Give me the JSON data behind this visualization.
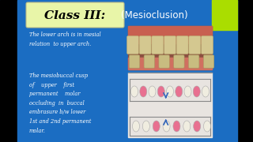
{
  "bg_color": "#1B6DC2",
  "bg_left_color": "#000000",
  "title_box_color": "#E8F5A8",
  "title_text": "Class III:",
  "title_text_color": "#000000",
  "subtitle_text": "(Mesioclusion)",
  "subtitle_color": "#FFFFFF",
  "desc1_line1": "The lower arch is in mesial",
  "desc1_line2": "relation  to upper arch.",
  "desc2_line1": "The mesiobuccal cusp",
  "desc2_line2": "of    upper    first",
  "desc2_line3": "permanent    molar",
  "desc2_line4": "occluding  in  buccal",
  "desc2_line5": "embrasure b/w lower",
  "desc2_line6": "1st and 2nd permanent",
  "desc2_line7": "molar.",
  "desc_color": "#FFFFFF",
  "accent_color": "#AADD00",
  "photo_gum_color": "#C86050",
  "photo_tissue_color": "#D07060",
  "photo_teeth_color": "#D4C890",
  "photo_bg_color": "#8B5040",
  "diagram_bg_color": "#E8E4E0",
  "diagram_jaw_color": "#888888",
  "tooth_white_color": "#F0EDE0",
  "tooth_pink_color": "#E87090",
  "tooth_outline": "#AAAAAA",
  "arrow_color": "#3366BB",
  "figsize": [
    3.2,
    1.8
  ],
  "dpi": 100
}
